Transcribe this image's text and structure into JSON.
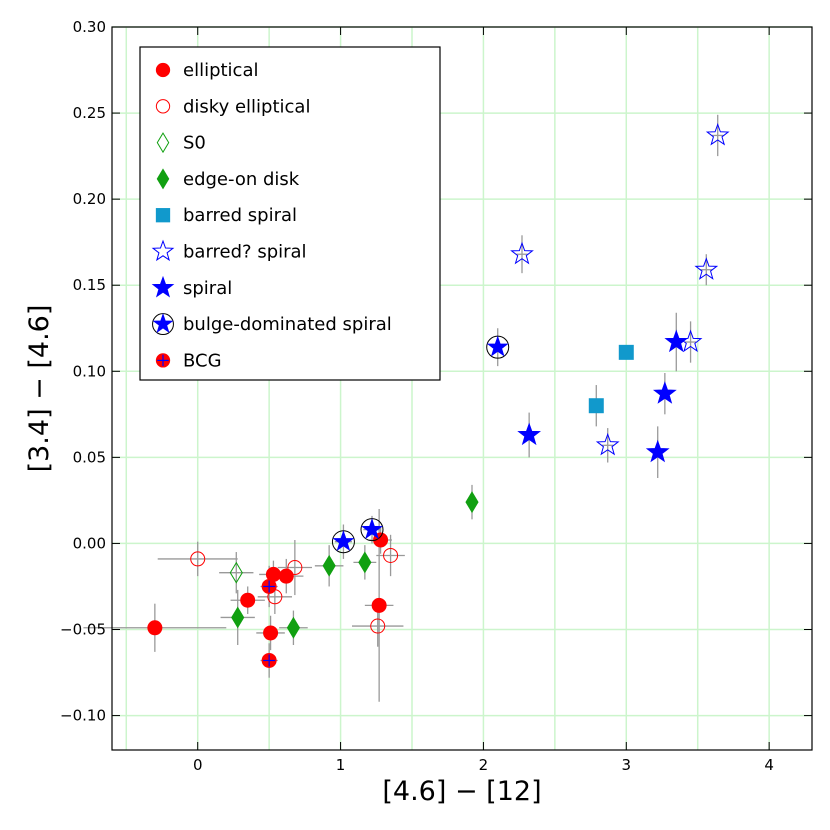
{
  "chart_data": {
    "type": "scatter",
    "xlabel": "[4.6] − [12]",
    "ylabel": "[3.4] − [4.6]",
    "xlim": [
      -0.6,
      4.3
    ],
    "ylim": [
      -0.12,
      0.3
    ],
    "grid": true,
    "legend_position": "top-left",
    "xticks": [
      "0",
      "1",
      "2",
      "3",
      "4"
    ],
    "xtick_values": [
      0,
      1,
      2,
      3,
      4
    ],
    "yticks": [
      "−0.10",
      "−0.05",
      "0.00",
      "0.05",
      "0.10",
      "0.15",
      "0.20",
      "0.25",
      "0.30"
    ],
    "ytick_values": [
      -0.1,
      -0.05,
      0.0,
      0.05,
      0.1,
      0.15,
      0.2,
      0.25,
      0.3
    ],
    "colors": {
      "red": "#ff0000",
      "green": "#11a011",
      "cyan": "#1199cc",
      "blue": "#0000ff",
      "error": "#999999",
      "grid": "#ccf5cc"
    },
    "series": [
      {
        "name": "elliptical",
        "marker": "circle-filled",
        "points": [
          {
            "x": -0.3,
            "y": -0.049,
            "xerr": 0.5,
            "yerr": 0.014
          },
          {
            "x": 0.35,
            "y": -0.033,
            "xerr": 0.12,
            "yerr": 0.008
          },
          {
            "x": 0.53,
            "y": -0.018,
            "xerr": 0.1,
            "yerr": 0.008
          },
          {
            "x": 0.62,
            "y": -0.019,
            "xerr": 0.12,
            "yerr": 0.01
          },
          {
            "x": 0.51,
            "y": -0.052,
            "xerr": 0.1,
            "yerr": 0.01
          },
          {
            "x": 1.28,
            "y": 0.002,
            "xerr": 0.08,
            "yerr": 0.008
          },
          {
            "x": 1.27,
            "y": -0.036,
            "xerr": 0.1,
            "yerr": 0.056
          }
        ]
      },
      {
        "name": "disky elliptical",
        "marker": "circle-open",
        "points": [
          {
            "x": 0.0,
            "y": -0.009,
            "xerr": 0.28,
            "yerr": 0.01
          },
          {
            "x": 0.68,
            "y": -0.014,
            "xerr": 0.12,
            "yerr": 0.016
          },
          {
            "x": 0.54,
            "y": -0.031,
            "xerr": 0.12,
            "yerr": 0.01
          },
          {
            "x": 1.35,
            "y": -0.007,
            "xerr": 0.1,
            "yerr": 0.012
          },
          {
            "x": 1.26,
            "y": -0.048,
            "xerr": 0.18,
            "yerr": 0.012
          }
        ]
      },
      {
        "name": "S0",
        "marker": "diamond-open",
        "points": [
          {
            "x": 0.27,
            "y": -0.017,
            "xerr": 0.12,
            "yerr": 0.012
          }
        ]
      },
      {
        "name": "edge-on disk",
        "marker": "diamond-filled",
        "points": [
          {
            "x": 0.28,
            "y": -0.043,
            "xerr": 0.12,
            "yerr": 0.016
          },
          {
            "x": 0.67,
            "y": -0.049,
            "xerr": 0.1,
            "yerr": 0.01
          },
          {
            "x": 0.92,
            "y": -0.013,
            "xerr": 0.1,
            "yerr": 0.012
          },
          {
            "x": 1.17,
            "y": -0.011,
            "xerr": 0.08,
            "yerr": 0.01
          },
          {
            "x": 1.92,
            "y": 0.024,
            "xerr": 0.03,
            "yerr": 0.01
          }
        ]
      },
      {
        "name": "barred spiral",
        "marker": "square-filled",
        "points": [
          {
            "x": 2.79,
            "y": 0.08,
            "xerr": 0.05,
            "yerr": 0.012
          },
          {
            "x": 3.0,
            "y": 0.111,
            "xerr": 0.0,
            "yerr": 0.0
          }
        ]
      },
      {
        "name": "barred? spiral",
        "marker": "star-open",
        "points": [
          {
            "x": 2.27,
            "y": 0.168,
            "xerr": 0.04,
            "yerr": 0.011
          },
          {
            "x": 2.87,
            "y": 0.057,
            "xerr": 0.04,
            "yerr": 0.01
          },
          {
            "x": 3.45,
            "y": 0.117,
            "xerr": 0.04,
            "yerr": 0.012
          },
          {
            "x": 3.56,
            "y": 0.159,
            "xerr": 0.04,
            "yerr": 0.009
          },
          {
            "x": 3.64,
            "y": 0.237,
            "xerr": 0.04,
            "yerr": 0.012
          }
        ]
      },
      {
        "name": "spiral",
        "marker": "star-filled",
        "points": [
          {
            "x": 2.32,
            "y": 0.063,
            "xerr": 0.04,
            "yerr": 0.013
          },
          {
            "x": 3.22,
            "y": 0.053,
            "xerr": 0.04,
            "yerr": 0.015
          },
          {
            "x": 3.27,
            "y": 0.087,
            "xerr": 0.04,
            "yerr": 0.012
          },
          {
            "x": 3.35,
            "y": 0.117,
            "xerr": 0.04,
            "yerr": 0.017
          }
        ]
      },
      {
        "name": "bulge-dominated spiral",
        "marker": "star-circled",
        "points": [
          {
            "x": 2.1,
            "y": 0.114,
            "xerr": 0.04,
            "yerr": 0.011
          },
          {
            "x": 1.02,
            "y": 0.001,
            "xerr": 0.06,
            "yerr": 0.01
          },
          {
            "x": 1.22,
            "y": 0.008,
            "xerr": 0.06,
            "yerr": 0.008
          }
        ]
      },
      {
        "name": "BCG",
        "marker": "circle-cross",
        "points": [
          {
            "x": 0.5,
            "y": -0.025,
            "xerr": 0.06,
            "yerr": 0.012
          },
          {
            "x": 0.5,
            "y": -0.068,
            "xerr": 0.06,
            "yerr": 0.01
          }
        ]
      }
    ]
  }
}
